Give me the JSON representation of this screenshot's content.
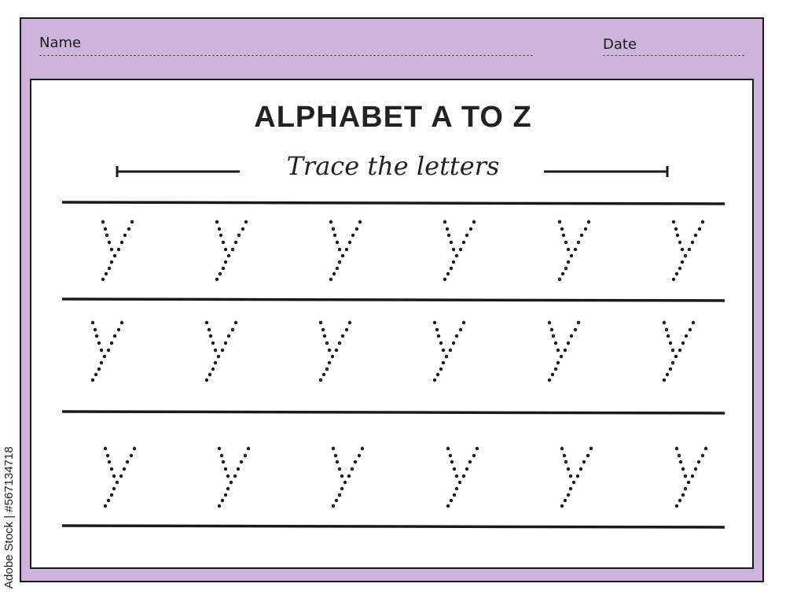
{
  "header": {
    "name_label": "Name",
    "date_label": "Date"
  },
  "worksheet": {
    "title": "ALPHABET A TO Z",
    "subtitle": "Trace the letters",
    "letter": "y",
    "rows": 3,
    "letters_per_row": 6
  },
  "colors": {
    "frame": "#cdb4da",
    "ink": "#1a1a1a"
  },
  "watermark": "Adobe Stock | #567134718"
}
